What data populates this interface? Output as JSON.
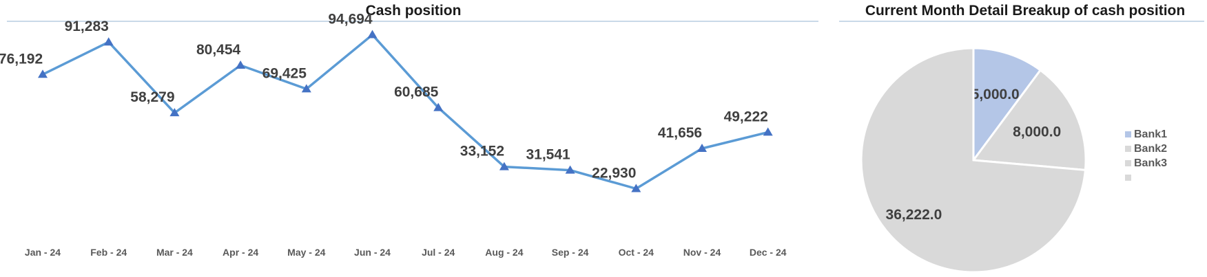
{
  "colors": {
    "line": "#5b9bd5",
    "marker": "#4472c4",
    "bank1": "#b4c6e7",
    "other": "#d9d9d9"
  },
  "chart_data": [
    {
      "type": "line",
      "title": "Cash position",
      "categories": [
        "Jan - 24",
        "Feb - 24",
        "Mar - 24",
        "Apr - 24",
        "May - 24",
        "Jun - 24",
        "Jul - 24",
        "Aug - 24",
        "Sep - 24",
        "Oct - 24",
        "Nov - 24",
        "Dec - 24"
      ],
      "series": [
        {
          "values": [
            76192,
            91283,
            58279,
            80454,
            69425,
            94694,
            60685,
            33152,
            31541,
            22930,
            41656,
            49222
          ]
        }
      ],
      "data_labels": [
        "76,192",
        "91,283",
        "58,279",
        "80,454",
        "69,425",
        "94,694",
        "60,685",
        "33,152",
        "31,541",
        "22,930",
        "41,656",
        "49,222"
      ],
      "ylim": [
        0,
        100000
      ],
      "grid": false,
      "marker": "triangle"
    },
    {
      "type": "pie",
      "title": "Current Month Detail Breakup of cash position",
      "slices": [
        {
          "name": "Bank1",
          "value": 5000.0,
          "label": "5,000.0"
        },
        {
          "name": "Bank2",
          "value": 8000.0,
          "label": "8,000.0"
        },
        {
          "name": "Bank3",
          "value": 36222.0,
          "label": "36,222.0"
        }
      ],
      "legend": [
        "Bank1",
        "Bank2",
        "Bank3",
        ""
      ],
      "legend_position": "right"
    }
  ]
}
